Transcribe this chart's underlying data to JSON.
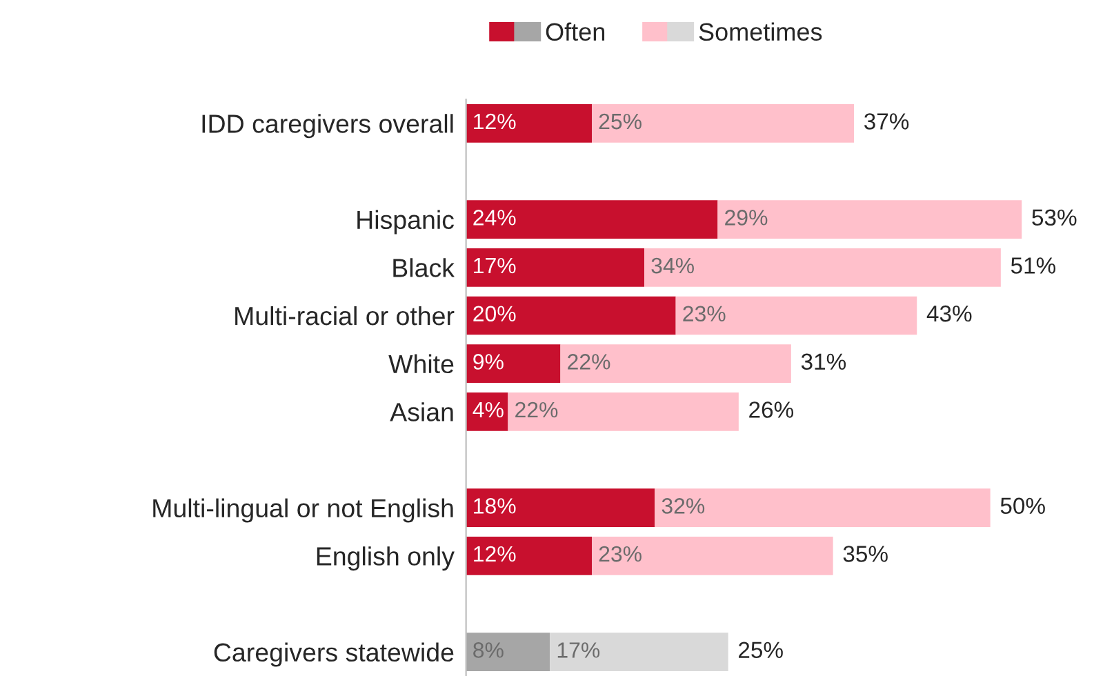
{
  "chart_data": {
    "type": "bar",
    "orientation": "horizontal",
    "stacked": true,
    "legend": "top",
    "categories": [
      "IDD caregivers overall",
      null,
      "Hispanic",
      "Black",
      "Multi-racial or other",
      "White",
      "Asian",
      null,
      "Multi-lingual or not English",
      "English only",
      null,
      "Caregivers statewide"
    ],
    "series": [
      {
        "name": "Often",
        "color": "#c8102e",
        "colors": [
          "#c8102e",
          null,
          "#c8102e",
          "#c8102e",
          "#c8102e",
          "#c8102e",
          "#c8102e",
          null,
          "#c8102e",
          "#c8102e",
          null,
          "#a6a6a6"
        ],
        "values": [
          12,
          null,
          24,
          17,
          20,
          9,
          4,
          null,
          18,
          12,
          null,
          8
        ],
        "value_labels": [
          "12%",
          null,
          "24%",
          "17%",
          "20%",
          "9%",
          "4%",
          null,
          "18%",
          "12%",
          null,
          "8%"
        ]
      },
      {
        "name": "Sometimes",
        "color": "#ffc0cb",
        "colors": [
          "#ffc0cb",
          null,
          "#ffc0cb",
          "#ffc0cb",
          "#ffc0cb",
          "#ffc0cb",
          "#ffc0cb",
          null,
          "#ffc0cb",
          "#ffc0cb",
          null,
          "#d9d9d9"
        ],
        "values": [
          25,
          null,
          29,
          34,
          23,
          22,
          22,
          null,
          32,
          23,
          null,
          17
        ],
        "value_labels": [
          "25%",
          null,
          "29%",
          "34%",
          "23%",
          "22%",
          "22%",
          null,
          "32%",
          "23%",
          null,
          "17%"
        ]
      }
    ],
    "totals": [
      "37%",
      null,
      "53%",
      "51%",
      "43%",
      "31%",
      "26%",
      null,
      "50%",
      "35%",
      null,
      "25%"
    ]
  }
}
